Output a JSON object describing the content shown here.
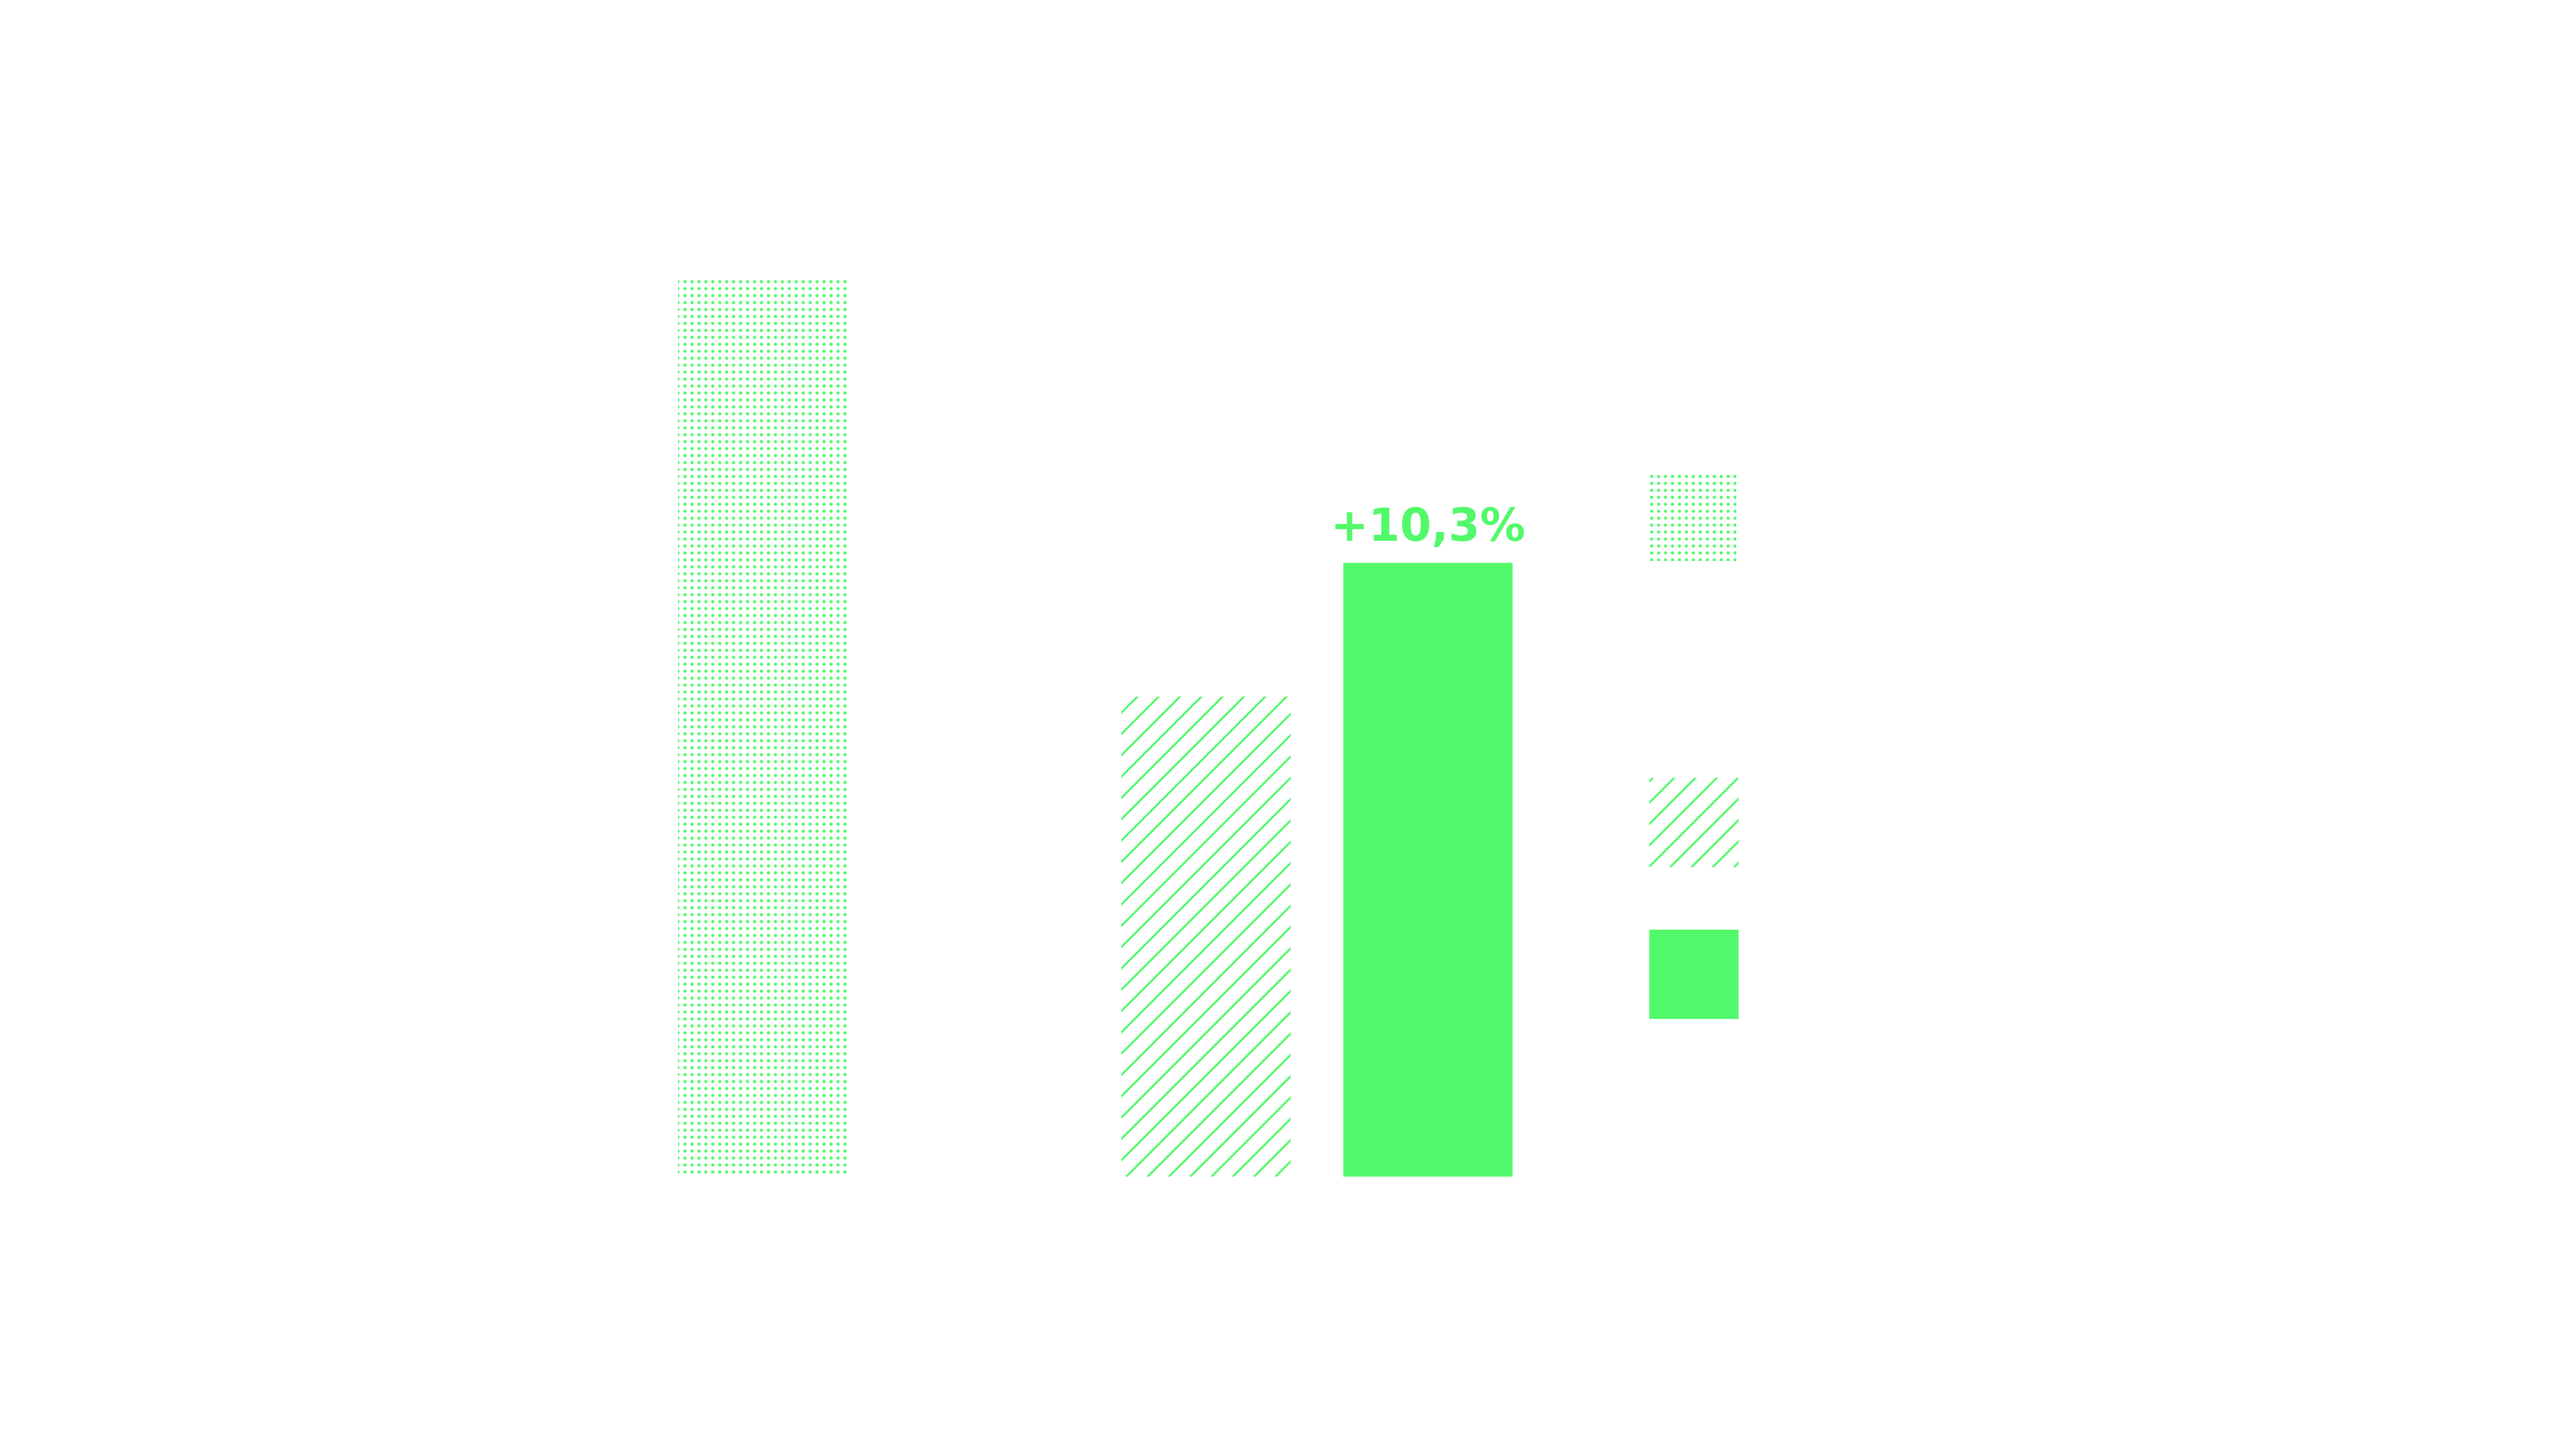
{
  "colors": {
    "accent": "#52f96a",
    "background": "#ffffff"
  },
  "chart_data": {
    "type": "bar",
    "title": "",
    "xlabel": "",
    "ylabel": "",
    "grid": false,
    "legend_position": "right",
    "categories": [
      "",
      ""
    ],
    "series": [
      {
        "pattern": "dotted",
        "values": [
          100,
          null
        ]
      },
      {
        "pattern": "diagonal-hatch",
        "values": [
          null,
          53.5
        ]
      },
      {
        "pattern": "solid",
        "values": [
          null,
          68.4
        ],
        "data_labels": [
          null,
          "+10,3%"
        ]
      }
    ],
    "ylim": [
      0,
      100
    ]
  }
}
